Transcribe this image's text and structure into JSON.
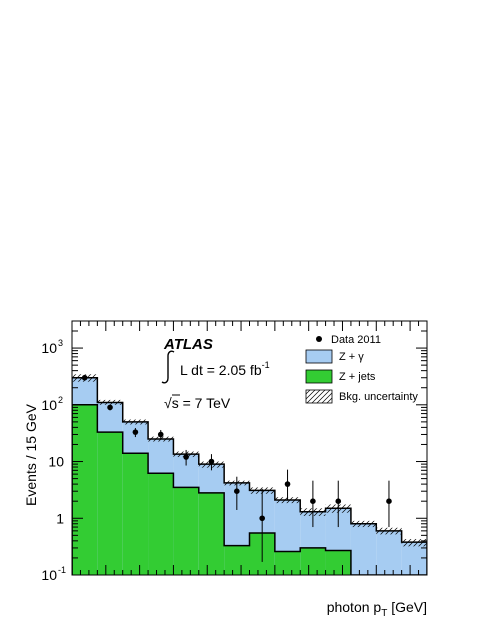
{
  "chart_data": {
    "type": "bar",
    "ylabel": "Events / 15 GeV",
    "xlabel_main": "photon p",
    "xlabel_sub": "T",
    "xlabel_unit": " [GeV]",
    "yscale": "log",
    "xlim": [
      20,
      230
    ],
    "ylim": [
      0.1,
      3000
    ],
    "x_ticks": [
      20,
      40,
      60,
      80,
      100,
      120,
      140,
      160,
      180,
      200,
      220
    ],
    "y_ticks": [
      {
        "value": 0.1,
        "base": "10",
        "exp": "-1"
      },
      {
        "value": 1,
        "base": "1",
        "exp": ""
      },
      {
        "value": 10,
        "base": "10",
        "exp": ""
      },
      {
        "value": 100,
        "base": "10",
        "exp": "2"
      },
      {
        "value": 1000,
        "base": "10",
        "exp": "3"
      }
    ],
    "annotations": {
      "experiment": "ATLAS",
      "lumi_text": "L dt = 2.05 fb",
      "lumi_exp": "-1",
      "sqrt_symbol": "√",
      "energy_text": "s = 7 TeV"
    },
    "legend": [
      {
        "label": "Data 2011",
        "kind": "marker"
      },
      {
        "label": "Z + γ",
        "kind": "fill",
        "color": "#a6ccf2"
      },
      {
        "label": "Z + jets",
        "kind": "fill",
        "color": "#33cc33"
      },
      {
        "label": "Bkg. uncertainty",
        "kind": "hatch"
      }
    ],
    "bins": [
      {
        "lo": 20,
        "hi": 35,
        "total": 300,
        "err_lo": 255,
        "err_hi": 345,
        "zjets": 100
      },
      {
        "lo": 35,
        "hi": 50,
        "total": 110,
        "err_lo": 100,
        "err_hi": 122,
        "zjets": 33
      },
      {
        "lo": 50,
        "hi": 65,
        "total": 50,
        "err_lo": 45,
        "err_hi": 55,
        "zjets": 14
      },
      {
        "lo": 65,
        "hi": 80,
        "total": 25,
        "err_lo": 22.5,
        "err_hi": 27.5,
        "zjets": 6.2
      },
      {
        "lo": 80,
        "hi": 95,
        "total": 13.5,
        "err_lo": 12,
        "err_hi": 15,
        "zjets": 3.5
      },
      {
        "lo": 95,
        "hi": 110,
        "total": 9,
        "err_lo": 7.8,
        "err_hi": 10,
        "zjets": 2.8
      },
      {
        "lo": 110,
        "hi": 125,
        "total": 4.2,
        "err_lo": 3.8,
        "err_hi": 4.6,
        "zjets": 0.33
      },
      {
        "lo": 125,
        "hi": 140,
        "total": 3.1,
        "err_lo": 2.7,
        "err_hi": 3.5,
        "zjets": 0.55
      },
      {
        "lo": 140,
        "hi": 155,
        "total": 2.1,
        "err_lo": 1.85,
        "err_hi": 2.35,
        "zjets": 0.26
      },
      {
        "lo": 155,
        "hi": 170,
        "total": 1.3,
        "err_lo": 1.1,
        "err_hi": 1.5,
        "zjets": 0.3
      },
      {
        "lo": 170,
        "hi": 185,
        "total": 1.5,
        "err_lo": 1.25,
        "err_hi": 1.75,
        "zjets": 0.27
      },
      {
        "lo": 185,
        "hi": 200,
        "total": 0.8,
        "err_lo": 0.7,
        "err_hi": 0.9,
        "zjets": 0.1
      },
      {
        "lo": 200,
        "hi": 215,
        "total": 0.6,
        "err_lo": 0.52,
        "err_hi": 0.68,
        "zjets": 0.1
      },
      {
        "lo": 215,
        "hi": 230,
        "total": 0.38,
        "err_lo": 0.32,
        "err_hi": 0.43,
        "zjets": 0.1
      }
    ],
    "data_points": [
      {
        "x": 27.5,
        "y": 300,
        "err_lo": 17,
        "err_hi": 17
      },
      {
        "x": 42.5,
        "y": 90,
        "err_lo": 10,
        "err_hi": 10
      },
      {
        "x": 57.5,
        "y": 33,
        "err_lo": 6,
        "err_hi": 6
      },
      {
        "x": 72.5,
        "y": 30,
        "err_lo": 5.5,
        "err_hi": 6
      },
      {
        "x": 87.5,
        "y": 12,
        "err_lo": 3.5,
        "err_hi": 4
      },
      {
        "x": 102.5,
        "y": 10,
        "err_lo": 3,
        "err_hi": 3.5
      },
      {
        "x": 117.5,
        "y": 3,
        "err_lo": 1.6,
        "err_hi": 2.4
      },
      {
        "x": 132.5,
        "y": 1,
        "err_lo": 0.83,
        "err_hi": 2.3
      },
      {
        "x": 147.5,
        "y": 4,
        "err_lo": 1.9,
        "err_hi": 3.2
      },
      {
        "x": 162.5,
        "y": 2,
        "err_lo": 1.3,
        "err_hi": 2.6
      },
      {
        "x": 177.5,
        "y": 2,
        "err_lo": 1.3,
        "err_hi": 2.6
      },
      {
        "x": 207.5,
        "y": 2,
        "err_lo": 1.3,
        "err_hi": 2.6
      }
    ]
  }
}
